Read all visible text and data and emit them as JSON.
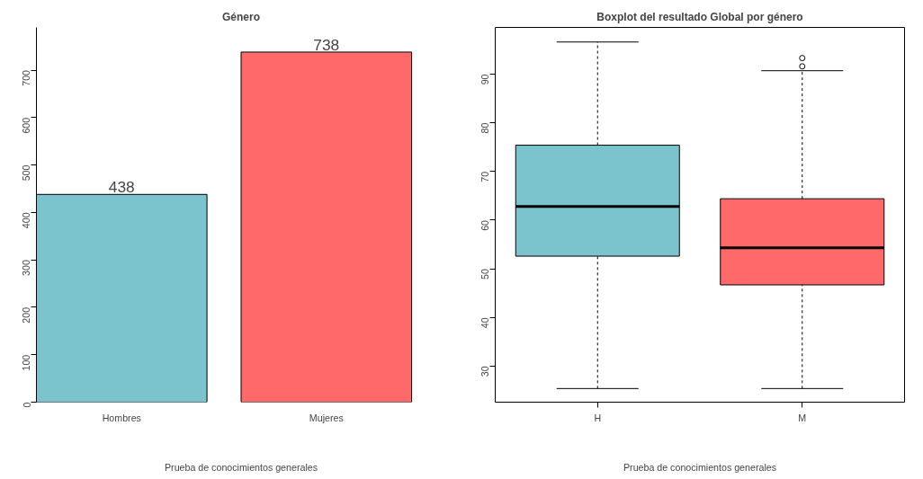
{
  "chart_data": [
    {
      "type": "bar",
      "title": "Género",
      "xlabel": "Prueba de conocimientos generales",
      "categories": [
        "Hombres",
        "Mujeres"
      ],
      "values": [
        438,
        738
      ],
      "colors": [
        "#7cc4cd",
        "#ff6969"
      ],
      "ylim": [
        0,
        790
      ],
      "yticks": [
        0,
        100,
        200,
        300,
        400,
        500,
        600,
        700
      ],
      "data_labels": true,
      "grid": false
    },
    {
      "type": "box",
      "title": "Boxplot del resultado Global por género",
      "xlabel": "Prueba de conocimientos generales",
      "categories": [
        "H",
        "M"
      ],
      "colors": [
        "#7cc4cd",
        "#ff6969"
      ],
      "boxes": [
        {
          "low": 25.4,
          "q1": 52.6,
          "median": 62.8,
          "q3": 75.4,
          "high": 96.6
        },
        {
          "low": 25.4,
          "q1": 46.7,
          "median": 54.3,
          "q3": 64.4,
          "high": 90.7,
          "outliers": [
            91.6,
            93.3
          ]
        }
      ],
      "ylim": [
        22.6,
        99.6
      ],
      "yticks": [
        30,
        40,
        50,
        60,
        70,
        80,
        90
      ],
      "grid": false
    }
  ]
}
